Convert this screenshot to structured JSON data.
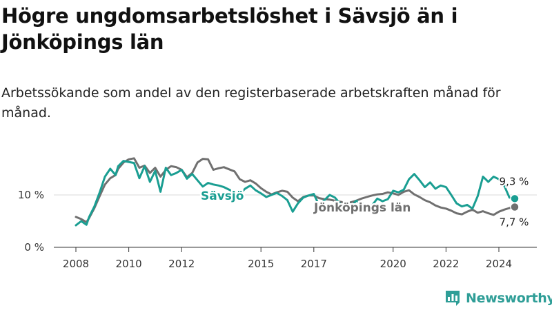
{
  "header": {
    "title": "Högre ungdomsarbetslöshet i Sävsjö än i Jönköpings län",
    "subtitle": "Arbetssökande som andel av den registerbaserade arbetskraften månad för månad."
  },
  "brand": {
    "name": "Newsworthy"
  },
  "chart_data": {
    "type": "line",
    "title": "Högre ungdomsarbetslöshet i Sävsjö än i Jönköpings län",
    "subtitle": "Arbetssökande som andel av den registerbaserade arbetskraften månad för månad.",
    "xlabel": "",
    "ylabel": "",
    "x_unit": "year",
    "xlim": [
      2007.5,
      2025.2
    ],
    "ylim": [
      0,
      19
    ],
    "y_ticks": [
      0,
      10
    ],
    "y_tick_labels": [
      "0 %",
      "10 %"
    ],
    "x_ticks": [
      2008,
      2010,
      2012,
      2015,
      2017,
      2020,
      2022,
      2024
    ],
    "x_tick_labels": [
      "2008",
      "2010",
      "2012",
      "2015",
      "2017",
      "2020",
      "2022",
      "2024"
    ],
    "grid": true,
    "series": [
      {
        "name": "Sävsjö",
        "color": "#1a9e92",
        "end_label": "9,3 %",
        "x": [
          2008.0,
          2008.2,
          2008.4,
          2008.5,
          2008.7,
          2008.9,
          2009.1,
          2009.3,
          2009.5,
          2009.6,
          2009.8,
          2010.0,
          2010.2,
          2010.4,
          2010.6,
          2010.8,
          2011.0,
          2011.2,
          2011.4,
          2011.6,
          2011.8,
          2012.0,
          2012.2,
          2012.4,
          2012.6,
          2012.8,
          2013.0,
          2013.2,
          2013.4,
          2013.6,
          2013.8,
          2014.0,
          2014.2,
          2014.4,
          2014.6,
          2014.8,
          2015.0,
          2015.2,
          2015.4,
          2015.6,
          2015.8,
          2016.0,
          2016.2,
          2016.4,
          2016.6,
          2016.8,
          2017.0,
          2017.2,
          2017.4,
          2017.6,
          2017.8,
          2018.0,
          2018.2,
          2018.4,
          2018.6,
          2018.8,
          2019.0,
          2019.2,
          2019.4,
          2019.6,
          2019.8,
          2020.0,
          2020.2,
          2020.4,
          2020.6,
          2020.8,
          2021.0,
          2021.2,
          2021.4,
          2021.6,
          2021.8,
          2022.0,
          2022.2,
          2022.4,
          2022.6,
          2022.8,
          2023.0,
          2023.2,
          2023.4,
          2023.6,
          2023.8,
          2024.0,
          2024.2,
          2024.4,
          2024.6
        ],
        "values": [
          4.2,
          5.0,
          4.3,
          5.8,
          7.8,
          10.5,
          13.5,
          15.0,
          13.8,
          15.5,
          16.5,
          16.3,
          16.1,
          13.2,
          15.5,
          12.5,
          14.6,
          10.6,
          15.2,
          13.8,
          14.2,
          14.8,
          13.1,
          14.0,
          12.8,
          11.6,
          12.3,
          12.0,
          11.8,
          11.5,
          11.0,
          10.5,
          10.2,
          11.2,
          11.8,
          10.9,
          10.3,
          9.6,
          10.0,
          10.4,
          9.8,
          9.0,
          6.8,
          8.4,
          9.5,
          9.9,
          10.2,
          8.0,
          9.0,
          10.0,
          9.5,
          8.3,
          7.0,
          7.7,
          8.9,
          8.5,
          7.8,
          8.0,
          9.3,
          8.8,
          9.2,
          10.8,
          10.5,
          11.0,
          13.0,
          14.0,
          12.8,
          11.5,
          12.4,
          11.2,
          11.8,
          11.5,
          10.0,
          8.4,
          7.8,
          8.1,
          7.4,
          9.8,
          13.5,
          12.5,
          13.5,
          13.0,
          11.8,
          9.5,
          9.3
        ]
      },
      {
        "name": "Jönköpings län",
        "color": "#707070",
        "end_label": "7,7 %",
        "x": [
          2008.0,
          2008.2,
          2008.4,
          2008.5,
          2008.7,
          2008.9,
          2009.1,
          2009.3,
          2009.5,
          2009.6,
          2009.8,
          2010.0,
          2010.2,
          2010.4,
          2010.6,
          2010.8,
          2011.0,
          2011.2,
          2011.4,
          2011.6,
          2011.8,
          2012.0,
          2012.2,
          2012.4,
          2012.6,
          2012.8,
          2013.0,
          2013.2,
          2013.4,
          2013.6,
          2013.8,
          2014.0,
          2014.2,
          2014.4,
          2014.6,
          2014.8,
          2015.0,
          2015.2,
          2015.4,
          2015.6,
          2015.8,
          2016.0,
          2016.2,
          2016.4,
          2016.6,
          2016.8,
          2017.0,
          2017.2,
          2017.4,
          2017.6,
          2017.8,
          2018.0,
          2018.2,
          2018.4,
          2018.6,
          2018.8,
          2019.0,
          2019.2,
          2019.4,
          2019.6,
          2019.8,
          2020.0,
          2020.2,
          2020.4,
          2020.6,
          2020.8,
          2021.0,
          2021.2,
          2021.4,
          2021.6,
          2021.8,
          2022.0,
          2022.2,
          2022.4,
          2022.6,
          2022.8,
          2023.0,
          2023.2,
          2023.4,
          2023.6,
          2023.8,
          2024.0,
          2024.2,
          2024.4,
          2024.6
        ],
        "values": [
          5.8,
          5.4,
          4.8,
          5.6,
          7.5,
          9.8,
          12.0,
          13.2,
          13.8,
          15.0,
          16.2,
          16.8,
          17.0,
          15.2,
          15.6,
          14.2,
          15.2,
          13.5,
          14.8,
          15.5,
          15.3,
          14.8,
          13.4,
          14.2,
          16.2,
          16.9,
          16.8,
          14.8,
          15.1,
          15.3,
          14.9,
          14.5,
          13.0,
          12.5,
          12.8,
          12.2,
          11.3,
          10.6,
          10.1,
          10.5,
          10.8,
          10.6,
          9.5,
          8.8,
          9.6,
          9.9,
          9.9,
          9.4,
          9.2,
          9.1,
          8.9,
          8.7,
          8.5,
          8.6,
          8.9,
          9.3,
          9.6,
          9.9,
          10.1,
          10.2,
          10.5,
          10.3,
          10.0,
          10.6,
          10.9,
          10.1,
          9.6,
          9.0,
          8.6,
          8.0,
          7.6,
          7.4,
          7.0,
          6.5,
          6.3,
          6.8,
          7.2,
          6.6,
          6.9,
          6.5,
          6.2,
          6.8,
          7.2,
          7.5,
          7.7
        ]
      }
    ],
    "annotations": [
      {
        "text": "Sävsjö",
        "series": "Sävsjö"
      },
      {
        "text": "Jönköpings län",
        "series": "Jönköpings län"
      }
    ]
  }
}
